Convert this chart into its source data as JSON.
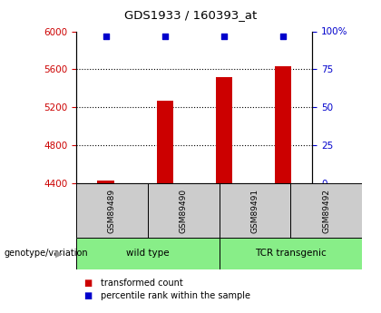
{
  "title": "GDS1933 / 160393_at",
  "samples": [
    "GSM89489",
    "GSM89490",
    "GSM89491",
    "GSM89492"
  ],
  "bar_values": [
    4430,
    5270,
    5520,
    5635
  ],
  "percentile_values": [
    97,
    97,
    97,
    97
  ],
  "ylim_left": [
    4400,
    6000
  ],
  "ylim_right": [
    0,
    100
  ],
  "yticks_left": [
    4400,
    4800,
    5200,
    5600,
    6000
  ],
  "yticks_right": [
    0,
    25,
    50,
    75,
    100
  ],
  "ytick_labels_right": [
    "0",
    "25",
    "50",
    "75",
    "100%"
  ],
  "bar_color": "#cc0000",
  "dot_color": "#0000cc",
  "left_tick_color": "#cc0000",
  "right_tick_color": "#0000cc",
  "groups": [
    {
      "label": "wild type",
      "samples": [
        0,
        1
      ]
    },
    {
      "label": "TCR transgenic",
      "samples": [
        2,
        3
      ]
    }
  ],
  "group_color": "#88ee88",
  "sample_box_color": "#cccccc",
  "legend_bar_label": "transformed count",
  "legend_dot_label": "percentile rank within the sample",
  "genotype_label": "genotype/variation"
}
